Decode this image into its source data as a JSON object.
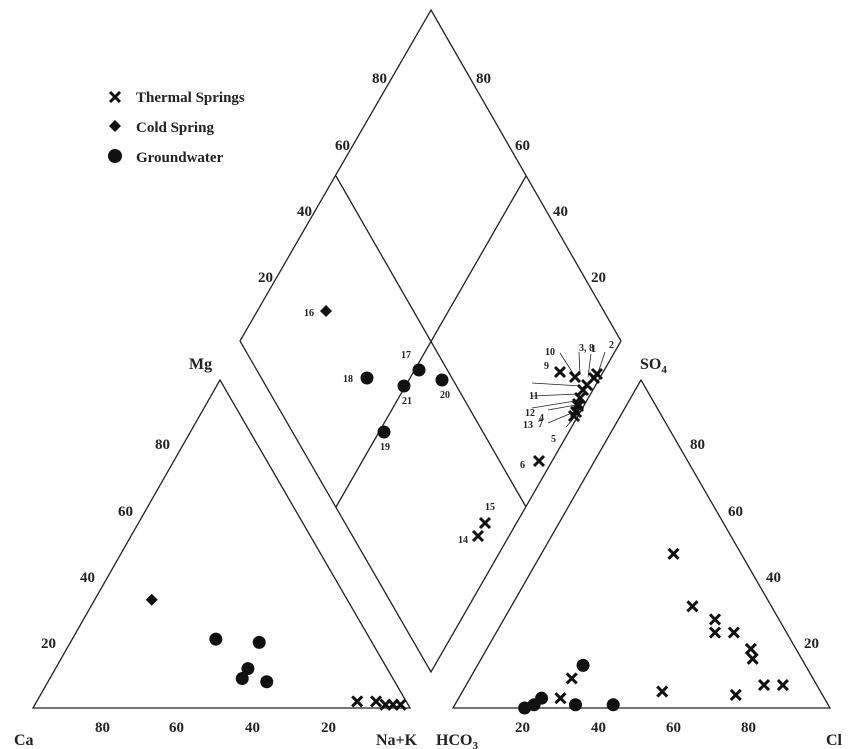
{
  "legend": {
    "thermal": "Thermal Springs",
    "cold": "Cold Spring",
    "ground": "Groundwater"
  },
  "corners": {
    "ca": "Ca",
    "mg": "Mg",
    "nak": "Na+K",
    "hco3": "HCO",
    "hco3_sub": "3",
    "so4": "SO",
    "so4_sub": "4",
    "cl": "Cl"
  },
  "ticks": {
    "cation_bottom": [
      "80",
      "60",
      "40",
      "20"
    ],
    "cation_left": [
      "20",
      "40",
      "60",
      "80"
    ],
    "anion_bottom": [
      "20",
      "40",
      "60",
      "80"
    ],
    "anion_right": [
      "20",
      "40",
      "60",
      "80"
    ],
    "diamond_upper_left": [
      "20",
      "40",
      "60",
      "80"
    ],
    "diamond_upper_right": [
      "80",
      "60",
      "40",
      "20"
    ]
  },
  "chart_data": {
    "type": "scatter",
    "title": "",
    "series_styles": {
      "thermal": "x-marker",
      "cold": "diamond-marker",
      "ground": "circle-marker"
    },
    "cation_triangle": [
      {
        "series": "cold",
        "mg": 33,
        "na_k": 15
      },
      {
        "series": "ground",
        "mg": 21,
        "na_k": 38
      },
      {
        "series": "ground",
        "mg": 20,
        "na_k": 50
      },
      {
        "series": "ground",
        "mg": 12,
        "na_k": 51
      },
      {
        "series": "ground",
        "mg": 9,
        "na_k": 51
      },
      {
        "series": "ground",
        "mg": 8,
        "na_k": 58
      },
      {
        "series": "thermal",
        "mg": 2,
        "na_k": 85
      },
      {
        "series": "thermal",
        "mg": 2,
        "na_k": 90
      },
      {
        "series": "thermal",
        "mg": 1,
        "na_k": 93
      },
      {
        "series": "thermal",
        "mg": 1,
        "na_k": 95
      },
      {
        "series": "thermal",
        "mg": 1,
        "na_k": 97
      }
    ],
    "anion_triangle": [
      {
        "series": "thermal",
        "so4": 47,
        "cl": 35
      },
      {
        "series": "thermal",
        "so4": 31,
        "cl": 48
      },
      {
        "series": "thermal",
        "so4": 27,
        "cl": 56
      },
      {
        "series": "thermal",
        "so4": 23,
        "cl": 58
      },
      {
        "series": "thermal",
        "so4": 23,
        "cl": 63
      },
      {
        "series": "thermal",
        "so4": 18,
        "cl": 70
      },
      {
        "series": "thermal",
        "so4": 15,
        "cl": 72
      },
      {
        "series": "thermal",
        "so4": 7,
        "cl": 79
      },
      {
        "series": "thermal",
        "so4": 7,
        "cl": 84
      },
      {
        "series": "thermal",
        "so4": 5,
        "cl": 53
      },
      {
        "series": "thermal",
        "so4": 9,
        "cl": 27
      },
      {
        "series": "thermal",
        "so4": 3,
        "cl": 27
      },
      {
        "series": "thermal",
        "so4": 4,
        "cl": 73
      },
      {
        "series": "ground",
        "so4": 13,
        "cl": 28
      },
      {
        "series": "ground",
        "so4": 3,
        "cl": 22
      },
      {
        "series": "ground",
        "so4": 1,
        "cl": 21
      },
      {
        "series": "ground",
        "so4": 1,
        "cl": 42
      },
      {
        "series": "ground",
        "so4": 1,
        "cl": 32
      },
      {
        "series": "ground",
        "so4": 0,
        "cl": 19
      }
    ],
    "diamond": [
      {
        "label": "16",
        "series": "cold",
        "so4_cl": 43,
        "ca_mg": 87
      },
      {
        "label": "17",
        "series": "ground",
        "so4_cl": 49,
        "ca_mg": 65
      },
      {
        "label": "18",
        "series": "ground",
        "so4_cl": 37,
        "ca_mg": 73
      },
      {
        "label": "19",
        "series": "ground",
        "so4_cl": 35,
        "ca_mg": 61
      },
      {
        "label": "20",
        "series": "ground",
        "so4_cl": 52,
        "ca_mg": 59
      },
      {
        "label": "21",
        "series": "ground",
        "so4_cl": 44,
        "ca_mg": 65
      },
      {
        "label": "1",
        "series": "thermal",
        "so4_cl": 63,
        "ca_mg": 10
      },
      {
        "label": "2",
        "series": "thermal",
        "so4_cl": 64,
        "ca_mg": 10
      },
      {
        "label": "3, 8",
        "series": "thermal",
        "so4_cl": 60,
        "ca_mg": 11
      },
      {
        "label": "4",
        "series": "thermal",
        "so4_cl": 57,
        "ca_mg": 11
      },
      {
        "label": "5",
        "series": "thermal",
        "so4_cl": 56,
        "ca_mg": 11
      },
      {
        "label": "6",
        "series": "thermal",
        "so4_cl": 48,
        "ca_mg": 13
      },
      {
        "label": "7",
        "series": "thermal",
        "so4_cl": 57,
        "ca_mg": 11
      },
      {
        "label": "9",
        "series": "thermal",
        "so4_cl": 60,
        "ca_mg": 15
      },
      {
        "label": "10",
        "series": "thermal",
        "so4_cl": 61,
        "ca_mg": 14
      },
      {
        "label": "11",
        "series": "thermal",
        "so4_cl": 59,
        "ca_mg": 12
      },
      {
        "label": "12",
        "series": "thermal",
        "so4_cl": 59,
        "ca_mg": 11
      },
      {
        "label": "13",
        "series": "thermal",
        "so4_cl": 58,
        "ca_mg": 11
      },
      {
        "label": "14",
        "series": "thermal",
        "so4_cl": 28,
        "ca_mg": 12
      },
      {
        "label": "15",
        "series": "thermal",
        "so4_cl": 30,
        "ca_mg": 12
      }
    ]
  }
}
